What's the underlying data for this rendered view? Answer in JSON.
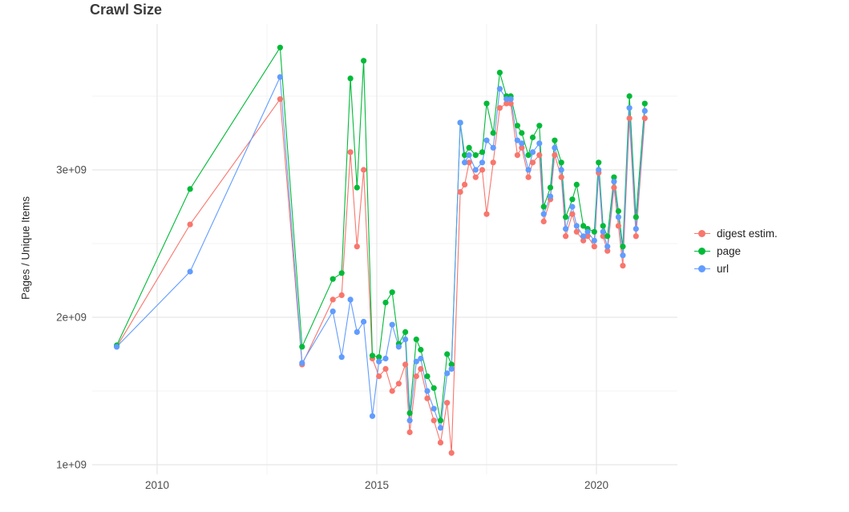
{
  "chart_data": {
    "type": "line",
    "title": "Crawl Size",
    "xlabel": "",
    "ylabel": "Pages / Unique Items",
    "y_value_unit": "1e+09 (billions of pages / unique items)",
    "grid": "on",
    "legend_position": "right",
    "xlim": [
      2008.5,
      2021.85
    ],
    "ylim_billions": [
      1.0,
      3.95
    ],
    "x_ticks": [
      {
        "value": 2010,
        "label": "2010"
      },
      {
        "value": 2015,
        "label": "2015"
      },
      {
        "value": 2020,
        "label": "2020"
      }
    ],
    "y_ticks": [
      {
        "value": 1.0,
        "label": "1e+09"
      },
      {
        "value": 2.0,
        "label": "2e+09"
      },
      {
        "value": 3.0,
        "label": "3e+09"
      }
    ],
    "x_minor_gridlines": [
      2012.5,
      2017.5
    ],
    "y_minor_gridlines": [
      1.5,
      2.5,
      3.5
    ],
    "x": [
      2009.08,
      2010.75,
      2012.8,
      2013.3,
      2014.0,
      2014.2,
      2014.4,
      2014.55,
      2014.7,
      2014.9,
      2015.05,
      2015.2,
      2015.35,
      2015.5,
      2015.65,
      2015.75,
      2015.9,
      2016.0,
      2016.15,
      2016.3,
      2016.45,
      2016.6,
      2016.7,
      2016.9,
      2017.0,
      2017.1,
      2017.25,
      2017.4,
      2017.5,
      2017.65,
      2017.8,
      2017.95,
      2018.05,
      2018.2,
      2018.3,
      2018.45,
      2018.55,
      2018.7,
      2018.8,
      2018.95,
      2019.05,
      2019.2,
      2019.3,
      2019.45,
      2019.55,
      2019.7,
      2019.8,
      2019.95,
      2020.05,
      2020.15,
      2020.25,
      2020.4,
      2020.5,
      2020.6,
      2020.75,
      2020.9,
      2021.1
    ],
    "series": [
      {
        "name": "digest estim.",
        "color": "#F8766D",
        "values": [
          1.8,
          2.63,
          3.48,
          1.68,
          2.12,
          2.15,
          3.12,
          2.48,
          3.0,
          1.72,
          1.6,
          1.65,
          1.5,
          1.55,
          1.68,
          1.22,
          1.6,
          1.65,
          1.45,
          1.3,
          1.15,
          1.42,
          1.08,
          2.85,
          2.9,
          3.05,
          2.95,
          3.0,
          2.7,
          3.05,
          3.42,
          3.45,
          3.45,
          3.1,
          3.15,
          2.95,
          3.05,
          3.1,
          2.65,
          2.8,
          3.1,
          2.95,
          2.55,
          2.7,
          2.58,
          2.52,
          2.55,
          2.48,
          2.98,
          2.55,
          2.45,
          2.88,
          2.62,
          2.35,
          3.35,
          2.55,
          3.35
        ]
      },
      {
        "name": "page",
        "color": "#00BA38",
        "values": [
          1.81,
          2.87,
          3.83,
          1.8,
          2.26,
          2.3,
          3.62,
          2.88,
          3.74,
          1.74,
          1.73,
          2.1,
          2.17,
          1.82,
          1.9,
          1.35,
          1.85,
          1.78,
          1.6,
          1.52,
          1.3,
          1.75,
          1.68,
          3.32,
          3.1,
          3.15,
          3.1,
          3.12,
          3.45,
          3.25,
          3.66,
          3.5,
          3.5,
          3.3,
          3.25,
          3.1,
          3.22,
          3.3,
          2.75,
          2.88,
          3.2,
          3.05,
          2.68,
          2.8,
          2.9,
          2.62,
          2.6,
          2.58,
          3.05,
          2.62,
          2.55,
          2.95,
          2.72,
          2.48,
          3.5,
          2.68,
          3.45
        ]
      },
      {
        "name": "url",
        "color": "#619CFF",
        "values": [
          1.8,
          2.31,
          3.63,
          1.69,
          2.04,
          1.73,
          2.12,
          1.9,
          1.97,
          1.33,
          1.7,
          1.72,
          1.95,
          1.8,
          1.85,
          1.3,
          1.7,
          1.72,
          1.5,
          1.38,
          1.25,
          1.62,
          1.65,
          3.32,
          3.05,
          3.1,
          3.0,
          3.05,
          3.2,
          3.15,
          3.55,
          3.48,
          3.48,
          3.2,
          3.18,
          3.0,
          3.12,
          3.18,
          2.7,
          2.82,
          3.15,
          3.0,
          2.6,
          2.75,
          2.62,
          2.55,
          2.58,
          2.52,
          3.0,
          2.58,
          2.48,
          2.92,
          2.68,
          2.42,
          3.42,
          2.6,
          3.4
        ]
      }
    ]
  }
}
